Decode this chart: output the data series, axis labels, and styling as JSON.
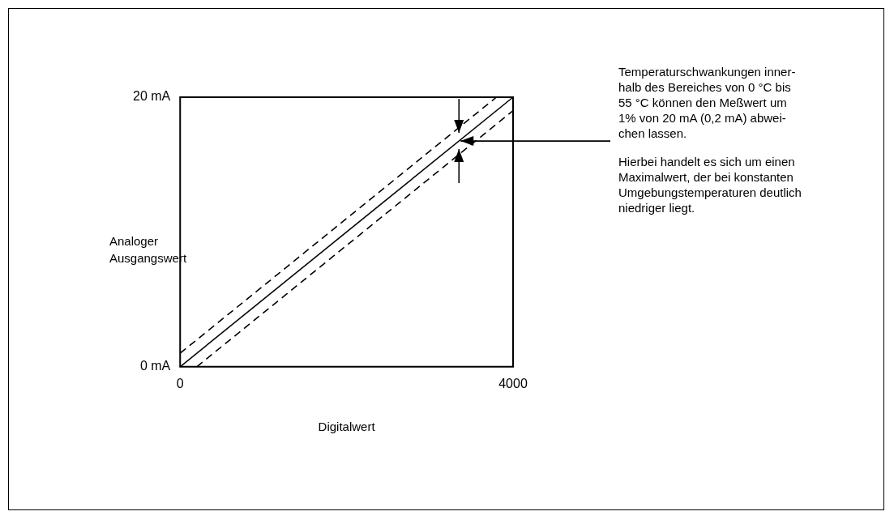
{
  "chart_data": {
    "type": "line",
    "xlabel": "Digitalwert",
    "ylabel": "Analoger\nAusgangswert",
    "xlim": [
      0,
      4000
    ],
    "ylim": [
      0,
      20
    ],
    "xticks": [
      0,
      4000
    ],
    "yticks": [
      {
        "value": 0,
        "label": "0 mA"
      },
      {
        "value": 20,
        "label": "20 mA"
      }
    ],
    "legend": false,
    "marker": "none",
    "series": [
      {
        "color": "#000000",
        "line_style": "solid",
        "x": [
          0,
          4000
        ],
        "values": [
          0,
          20
        ]
      },
      {
        "color": "#000000",
        "line_style": "dashed",
        "x": [
          0,
          3800
        ],
        "values": [
          1,
          20
        ]
      },
      {
        "color": "#000000",
        "line_style": "dashed",
        "x": [
          200,
          4000
        ],
        "values": [
          0,
          19
        ]
      }
    ],
    "annotations": [
      {
        "text": "Temperaturschwankungen inner-\nhalb des Bereiches von 0 °C bis\n55 °C können den Meßwert um\n1% von 20 mA (0,2 mA) abwei-\nchen lassen.",
        "x": 3350,
        "y": 16.75
      },
      "Hierbei handelt es sich um einen\nMaximalwert, der bei konstanten\nUmgebungstemperaturen deutlich\nniedriger liegt."
    ]
  }
}
